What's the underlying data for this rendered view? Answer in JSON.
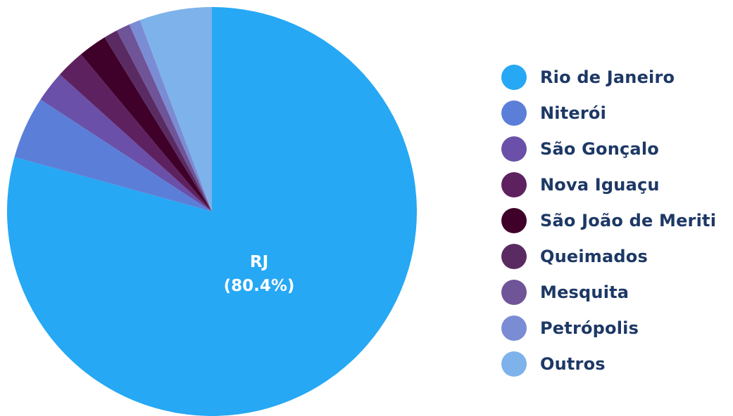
{
  "chart_data": {
    "type": "pie",
    "title": "",
    "categories": [
      "Rio de Janeiro",
      "Niterói",
      "São Gonçalo",
      "Nova Iguaçu",
      "São João de Meriti",
      "Queimados",
      "Mesquita",
      "Petrópolis",
      "Outros"
    ],
    "values": [
      80.4,
      5.0,
      2.5,
      2.3,
      2.3,
      1.1,
      1.1,
      0.9,
      5.8
    ],
    "colors": [
      "#26a8f4",
      "#5b7fd8",
      "#6a50a8",
      "#5e2160",
      "#3f0029",
      "#5a2b63",
      "#6f5498",
      "#7a8cd4",
      "#7eb2ea"
    ],
    "slice_labels": [
      {
        "index": 0,
        "name": "RJ",
        "value_text": "(80.4%)"
      }
    ],
    "legend": {
      "position": "right"
    }
  }
}
